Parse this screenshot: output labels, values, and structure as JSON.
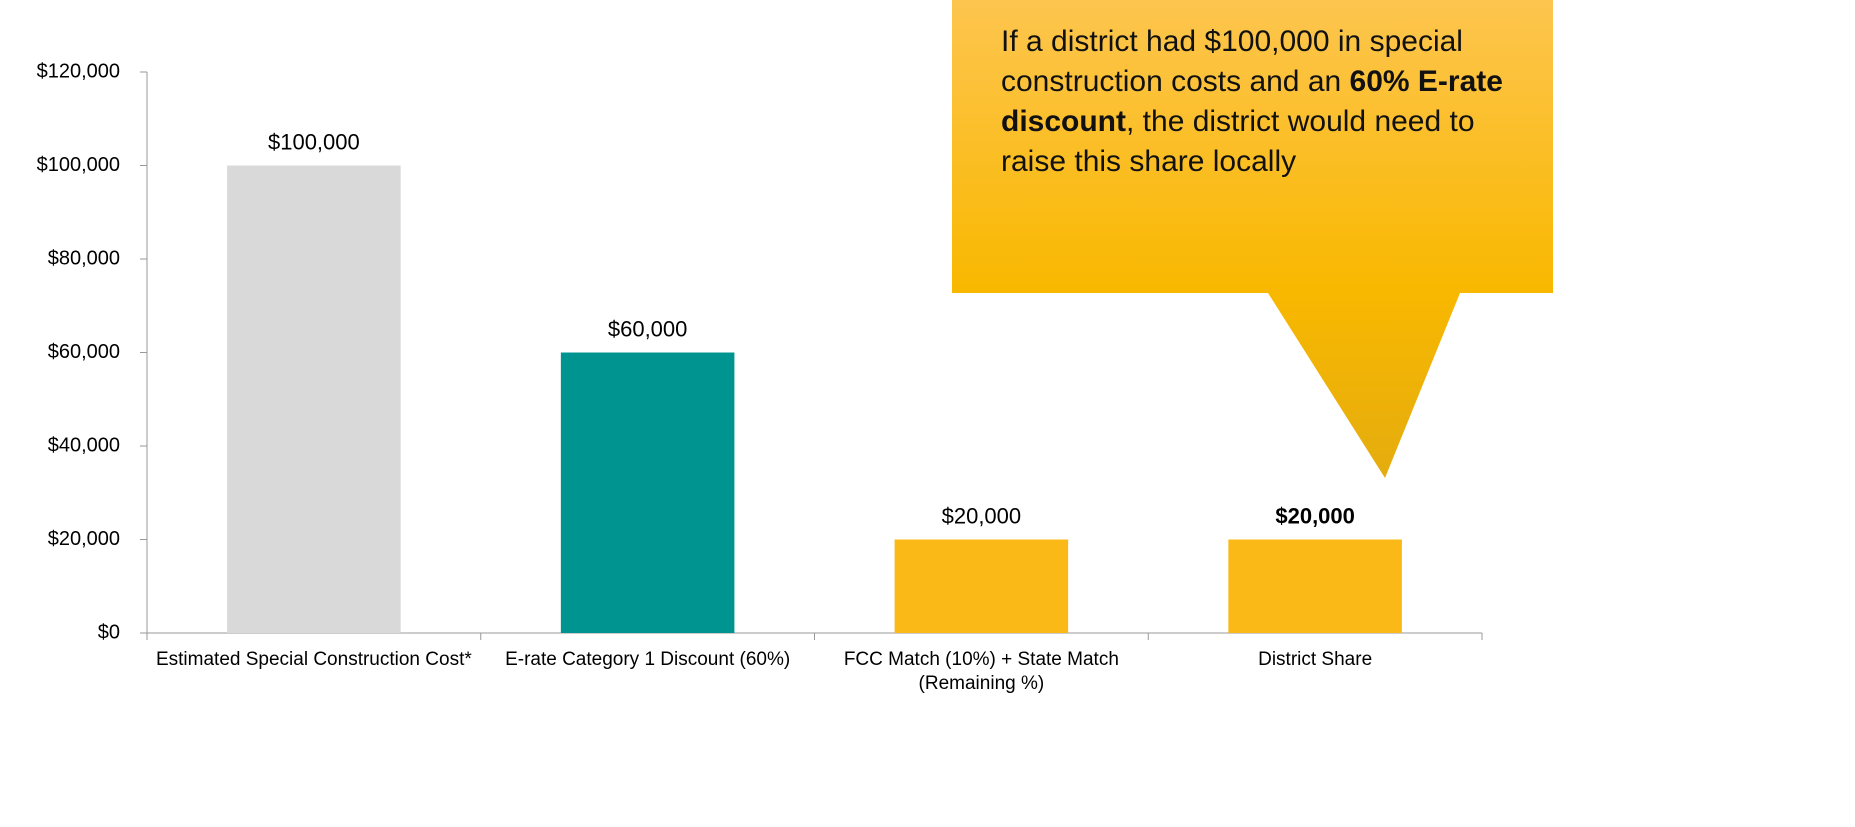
{
  "chart_data": {
    "type": "bar",
    "categories": [
      "Estimated Special Construction Cost*",
      "E-rate Category 1 Discount (60%)",
      "FCC Match (10%) + State Match (Remaining %)",
      "District Share"
    ],
    "values": [
      100000,
      60000,
      20000,
      20000
    ],
    "value_labels": [
      "$100,000",
      "$60,000",
      "$20,000",
      "$20,000"
    ],
    "value_label_bold": [
      false,
      false,
      false,
      true
    ],
    "colors": [
      "#d9d9d9",
      "#009490",
      "#fbb917",
      "#fbb917"
    ],
    "ylim": [
      0,
      120000
    ],
    "yticks": [
      {
        "value": 0,
        "label": "$0"
      },
      {
        "value": 20000,
        "label": "$20,000"
      },
      {
        "value": 40000,
        "label": "$40,000"
      },
      {
        "value": 60000,
        "label": "$60,000"
      },
      {
        "value": 80000,
        "label": "$80,000"
      },
      {
        "value": 100000,
        "label": "$100,000"
      },
      {
        "value": 120000,
        "label": "$120,000"
      }
    ],
    "grid": false,
    "annotation": [
      {
        "text": "If a district had $100,000 in special construction costs and an ",
        "bold": false
      },
      {
        "text": "60% E-rate discount",
        "bold": true
      },
      {
        "text": ", the district would need to raise this share locally",
        "bold": false
      }
    ]
  }
}
